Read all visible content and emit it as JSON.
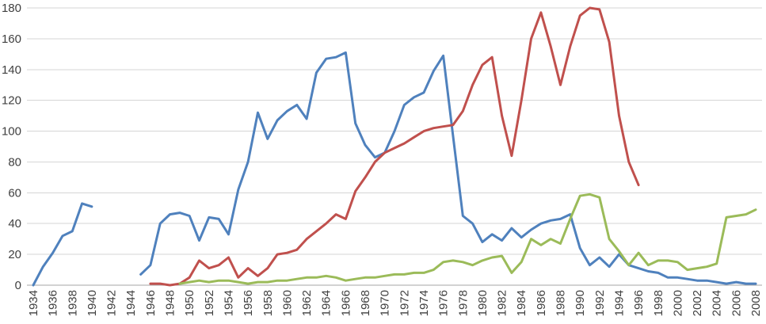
{
  "chart_data": {
    "type": "line",
    "title": "",
    "xlabel": "",
    "ylabel": "",
    "legend": "none",
    "grid": true,
    "ylim": [
      0,
      180
    ],
    "y_tick_step": 20,
    "y_tick_labels": [
      "0",
      "20",
      "40",
      "60",
      "80",
      "100",
      "120",
      "140",
      "160",
      "180"
    ],
    "x_tick_labels": [
      "1934",
      "1936",
      "1938",
      "1940",
      "1942",
      "1944",
      "1946",
      "1948",
      "1950",
      "1952",
      "1954",
      "1956",
      "1958",
      "1960",
      "1962",
      "1964",
      "1966",
      "1968",
      "1970",
      "1972",
      "1974",
      "1976",
      "1978",
      "1980",
      "1982",
      "1984",
      "1986",
      "1988",
      "1990",
      "1992",
      "1994",
      "1996",
      "1998",
      "2000",
      "2002",
      "2004",
      "2006",
      "2008"
    ],
    "x": [
      1934,
      1935,
      1936,
      1937,
      1938,
      1939,
      1940,
      1941,
      1942,
      1943,
      1944,
      1945,
      1946,
      1947,
      1948,
      1949,
      1950,
      1951,
      1952,
      1953,
      1954,
      1955,
      1956,
      1957,
      1958,
      1959,
      1960,
      1961,
      1962,
      1963,
      1964,
      1965,
      1966,
      1967,
      1968,
      1969,
      1970,
      1971,
      1972,
      1973,
      1974,
      1975,
      1976,
      1977,
      1978,
      1979,
      1980,
      1981,
      1982,
      1983,
      1984,
      1985,
      1986,
      1987,
      1988,
      1989,
      1990,
      1991,
      1992,
      1993,
      1994,
      1995,
      1996,
      1997,
      1998,
      1999,
      2000,
      2001,
      2002,
      2003,
      2004,
      2005,
      2006,
      2007,
      2008
    ],
    "series": [
      {
        "name": "series-blue",
        "color": "#4F81BD",
        "values": [
          0,
          12,
          21,
          32,
          35,
          53,
          51,
          null,
          null,
          null,
          null,
          7,
          13,
          40,
          46,
          47,
          45,
          29,
          44,
          43,
          33,
          62,
          80,
          112,
          95,
          107,
          113,
          117,
          108,
          138,
          147,
          148,
          151,
          105,
          91,
          83,
          86,
          100,
          117,
          122,
          125,
          139,
          149,
          97,
          45,
          40,
          28,
          33,
          29,
          37,
          31,
          36,
          40,
          42,
          43,
          46,
          24,
          13,
          18,
          12,
          20,
          13,
          11,
          9,
          8,
          5,
          5,
          4,
          3,
          3,
          2,
          1,
          2,
          1,
          1
        ]
      },
      {
        "name": "series-red",
        "color": "#C0504D",
        "values": [
          null,
          null,
          null,
          null,
          null,
          null,
          null,
          null,
          null,
          null,
          null,
          null,
          1,
          1,
          0,
          1,
          5,
          16,
          11,
          13,
          18,
          5,
          11,
          6,
          11,
          20,
          21,
          23,
          30,
          35,
          40,
          46,
          43,
          61,
          70,
          80,
          86,
          89,
          92,
          96,
          100,
          102,
          103,
          104,
          113,
          130,
          143,
          148,
          110,
          84,
          120,
          160,
          177,
          155,
          130,
          155,
          175,
          180,
          179,
          158,
          110,
          80,
          65,
          null,
          null,
          null,
          null,
          null,
          null,
          null,
          null,
          null,
          null,
          null,
          null
        ]
      },
      {
        "name": "series-green",
        "color": "#9BBB59",
        "values": [
          null,
          null,
          null,
          null,
          null,
          null,
          null,
          null,
          null,
          null,
          null,
          null,
          null,
          null,
          null,
          1,
          2,
          3,
          2,
          3,
          3,
          2,
          1,
          2,
          2,
          3,
          3,
          4,
          5,
          5,
          6,
          5,
          3,
          4,
          5,
          5,
          6,
          7,
          7,
          8,
          8,
          10,
          15,
          16,
          15,
          13,
          16,
          18,
          19,
          8,
          15,
          30,
          26,
          30,
          27,
          43,
          58,
          59,
          57,
          30,
          22,
          13,
          21,
          13,
          16,
          16,
          15,
          10,
          11,
          12,
          14,
          44,
          45,
          46,
          49
        ]
      }
    ],
    "grid_color": "#D6D6D6",
    "axis_color": "#A6A6A6",
    "tick_label_color": "#404040",
    "tick_font_size": 15,
    "line_width": 3
  }
}
